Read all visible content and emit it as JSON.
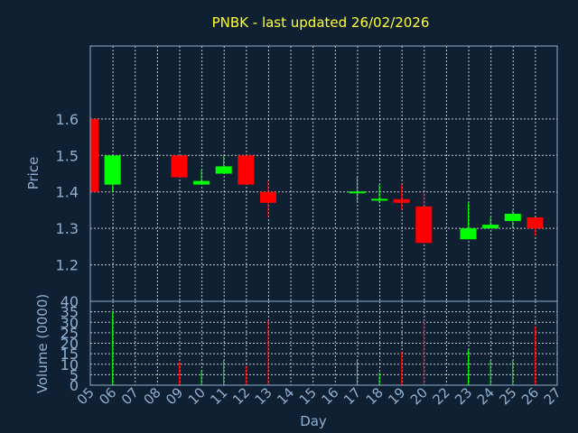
{
  "chart_data": {
    "type": "candlestick",
    "title": "PNBK - last updated 26/02/2026",
    "ylabel": "Price",
    "volume_label": "Volume (0000)",
    "xlabel": "Day",
    "x_ticks": [
      "05",
      "06",
      "07",
      "08",
      "09",
      "10",
      "11",
      "12",
      "13",
      "14",
      "15",
      "16",
      "17",
      "18",
      "19",
      "20",
      "22",
      "23",
      "24",
      "25",
      "26",
      "27"
    ],
    "price_ticks": [
      "1.2",
      "1.3",
      "1.4",
      "1.5",
      "1.6"
    ],
    "price_range": [
      1.1,
      1.8
    ],
    "volume_ticks": [
      "0",
      "5",
      "10",
      "15",
      "20",
      "25",
      "30",
      "35",
      "40"
    ],
    "volume_range": [
      0,
      40
    ],
    "colors": {
      "up": "#00ff00",
      "down": "#ff0000",
      "grid": "#ffffff",
      "frame": "#8fb0d0",
      "title": "#ffff33",
      "background": "#0f2033"
    },
    "candles": [
      {
        "day": "05",
        "open": 1.6,
        "close": 1.4,
        "high": 1.6,
        "low": 1.4,
        "volume": 0
      },
      {
        "day": "06",
        "open": 1.42,
        "close": 1.5,
        "high": 1.5,
        "low": 1.4,
        "volume": 35
      },
      {
        "day": "09",
        "open": 1.5,
        "close": 1.44,
        "high": 1.5,
        "low": 1.44,
        "volume": 11
      },
      {
        "day": "10",
        "open": 1.42,
        "close": 1.43,
        "high": 1.46,
        "low": 1.42,
        "volume": 7
      },
      {
        "day": "11",
        "open": 1.45,
        "close": 1.47,
        "high": 1.5,
        "low": 1.45,
        "volume": 12
      },
      {
        "day": "12",
        "open": 1.5,
        "close": 1.42,
        "high": 1.5,
        "low": 1.42,
        "volume": 9
      },
      {
        "day": "13",
        "open": 1.4,
        "close": 1.37,
        "high": 1.43,
        "low": 1.33,
        "volume": 31
      },
      {
        "day": "17",
        "open": 1.399,
        "close": 1.401,
        "high": 1.44,
        "low": 1.37,
        "volume": 12
      },
      {
        "day": "18",
        "open": 1.379,
        "close": 1.381,
        "high": 1.42,
        "low": 1.37,
        "volume": 6
      },
      {
        "day": "19",
        "open": 1.38,
        "close": 1.37,
        "high": 1.42,
        "low": 1.35,
        "volume": 16
      },
      {
        "day": "20",
        "open": 1.36,
        "close": 1.26,
        "high": 1.4,
        "low": 1.26,
        "volume": 31
      },
      {
        "day": "23",
        "open": 1.27,
        "close": 1.3,
        "high": 1.37,
        "low": 1.27,
        "volume": 17
      },
      {
        "day": "24",
        "open": 1.3,
        "close": 1.31,
        "high": 1.33,
        "low": 1.3,
        "volume": 12
      },
      {
        "day": "25",
        "open": 1.32,
        "close": 1.34,
        "high": 1.35,
        "low": 1.3,
        "volume": 12
      },
      {
        "day": "26",
        "open": 1.33,
        "close": 1.3,
        "high": 1.33,
        "low": 1.28,
        "volume": 28
      }
    ]
  }
}
